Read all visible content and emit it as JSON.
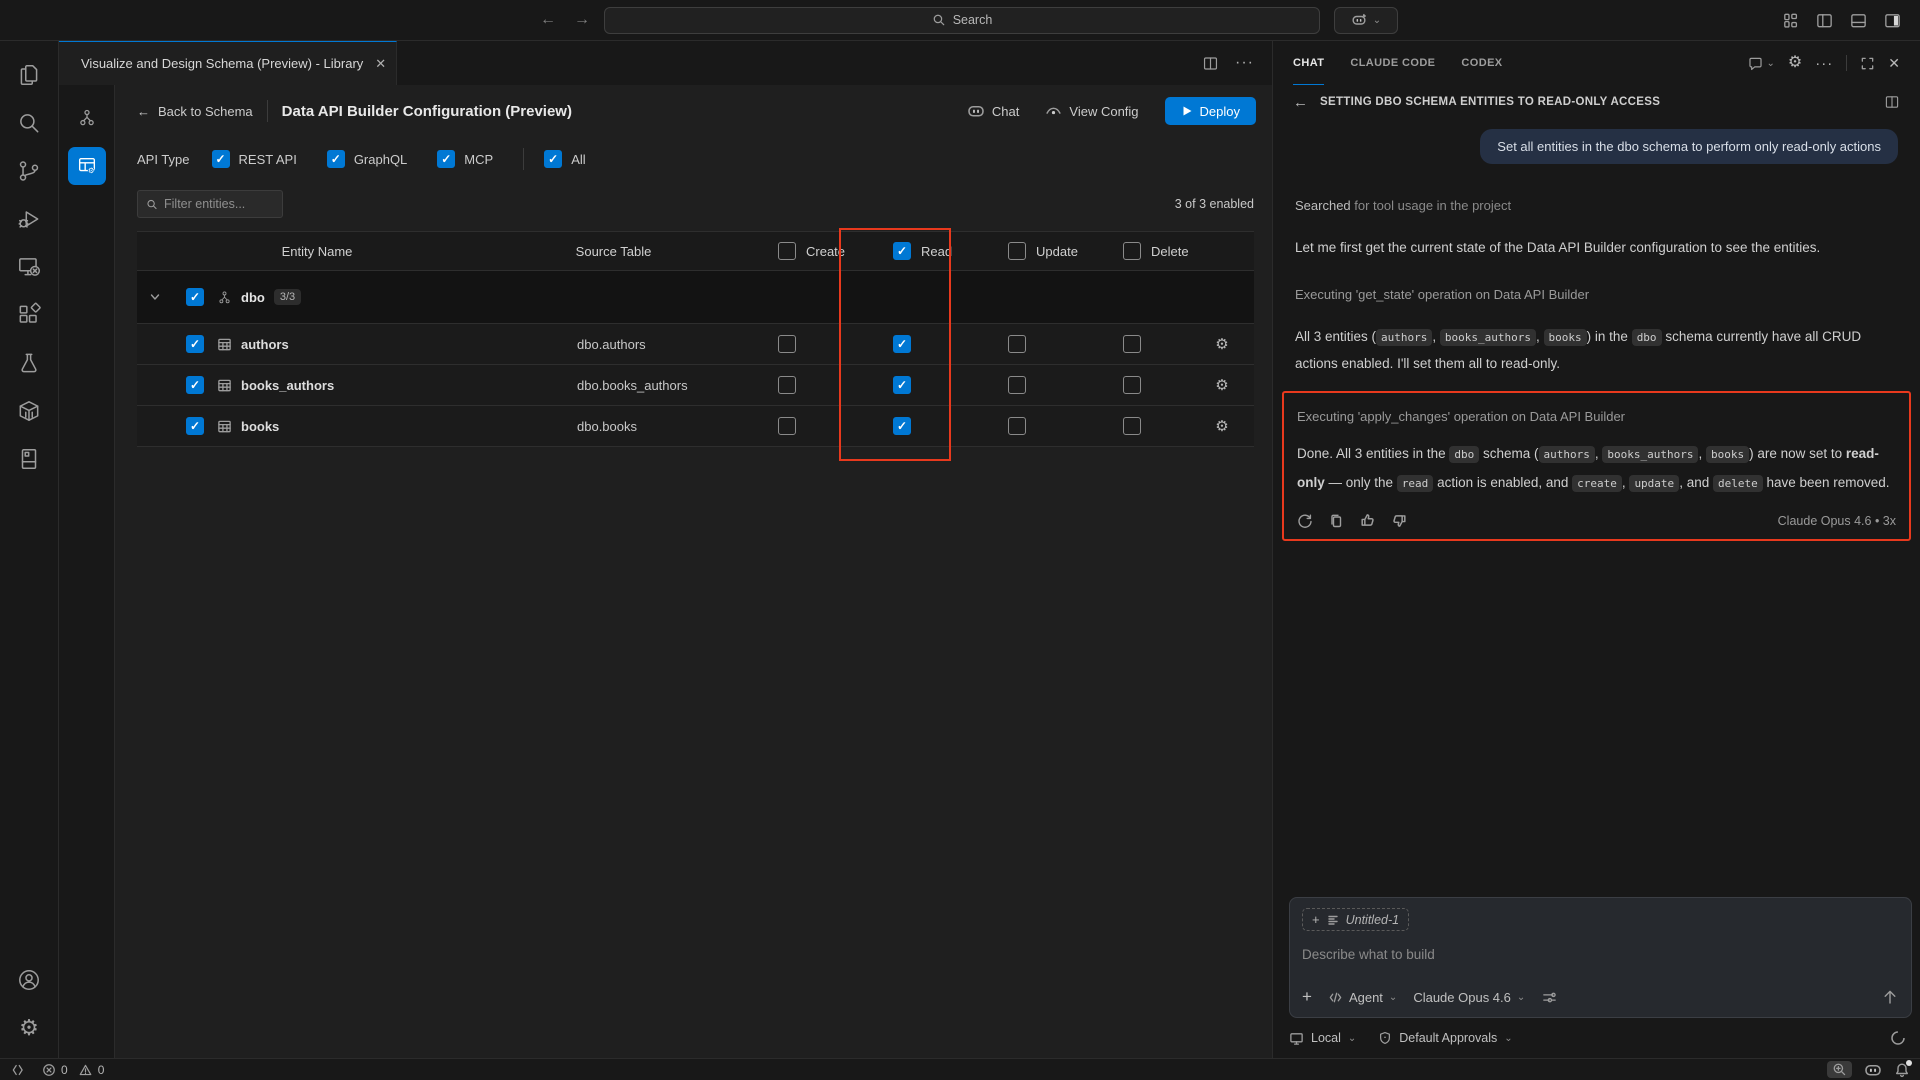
{
  "colors": {
    "accent": "#0078d4",
    "annotation_red": "#e8391d",
    "editor_bg": "#1f1f1f",
    "panel_bg": "#181818"
  },
  "glyphs": {
    "check": "✓",
    "gear": "⚙",
    "close": "✕",
    "ellipsis": "···",
    "chevron_down": "⌄",
    "chevron_expand": "⌄",
    "back_arrow": "←",
    "fwd_arrow": "→",
    "up_arrow": "↑",
    "chevron_row": "⌄",
    "plus": "+"
  },
  "title_bar": {
    "search_label": "Search"
  },
  "activity_bar": {
    "items": [
      "explorer",
      "search",
      "source-control",
      "run-debug",
      "remote-explorer",
      "extensions",
      "testing",
      "containers",
      "notebook"
    ],
    "bottom": [
      "account",
      "settings"
    ]
  },
  "editor": {
    "tab_title": "Visualize and Design Schema (Preview) - Library",
    "header": {
      "back_label": "Back to Schema",
      "title": "Data API Builder Configuration (Preview)",
      "chat_label": "Chat",
      "view_config_label": "View Config",
      "deploy_label": "Deploy"
    },
    "api_type": {
      "label": "API Type",
      "options": [
        {
          "label": "REST API",
          "checked": true
        },
        {
          "label": "GraphQL",
          "checked": true
        },
        {
          "label": "MCP",
          "checked": true
        },
        {
          "label": "All",
          "checked": true
        }
      ]
    },
    "filter": {
      "placeholder": "Filter entities...",
      "enabled_summary": "3 of 3 enabled"
    },
    "table": {
      "columns": {
        "entity": "Entity Name",
        "source": "Source Table",
        "create": "Create",
        "read": "Read",
        "update": "Update",
        "delete": "Delete"
      },
      "header_checks": {
        "create": false,
        "read": true,
        "update": false,
        "delete": false
      },
      "group": {
        "name": "dbo",
        "badge": "3/3",
        "checked": true
      },
      "rows": [
        {
          "name": "authors",
          "source": "dbo.authors",
          "selected": true,
          "create": false,
          "read": true,
          "update": false,
          "delete": false
        },
        {
          "name": "books_authors",
          "source": "dbo.books_authors",
          "selected": true,
          "create": false,
          "read": true,
          "update": false,
          "delete": false
        },
        {
          "name": "books",
          "source": "dbo.books",
          "selected": true,
          "create": false,
          "read": true,
          "update": false,
          "delete": false
        }
      ]
    }
  },
  "chat": {
    "tabs": [
      {
        "label": "CHAT",
        "active": true
      },
      {
        "label": "CLAUDE CODE",
        "active": false
      },
      {
        "label": "CODEX",
        "active": false
      }
    ],
    "session_title": "SETTING DBO SCHEMA ENTITIES TO READ-ONLY ACCESS",
    "user_message": "Set all entities in the dbo schema to perform only read-only actions",
    "searched_strong": "Searched",
    "searched_rest": " for tool usage in the project",
    "para1": "Let me first get the current state of the Data API Builder configuration to see the entities.",
    "op_get_state": "Executing 'get_state' operation on Data API Builder",
    "para2_segments": [
      {
        "t": "",
        "v": "All 3 entities ("
      },
      {
        "t": "c",
        "v": "authors"
      },
      {
        "t": "",
        "v": ", "
      },
      {
        "t": "c",
        "v": "books_authors"
      },
      {
        "t": "",
        "v": ", "
      },
      {
        "t": "c",
        "v": "books"
      },
      {
        "t": "",
        "v": ") in the "
      },
      {
        "t": "c",
        "v": "dbo"
      },
      {
        "t": "",
        "v": " schema currently have all CRUD actions enabled. I'll set them all to read-only."
      }
    ],
    "op_apply_changes": "Executing 'apply_changes' operation on Data API Builder",
    "done_segments": [
      {
        "t": "",
        "v": "Done. All 3 entities in the "
      },
      {
        "t": "c",
        "v": "dbo"
      },
      {
        "t": "",
        "v": " schema ("
      },
      {
        "t": "c",
        "v": "authors"
      },
      {
        "t": "",
        "v": ", "
      },
      {
        "t": "c",
        "v": "books_authors"
      },
      {
        "t": "",
        "v": ", "
      },
      {
        "t": "c",
        "v": "books"
      },
      {
        "t": "",
        "v": ") are now set to "
      },
      {
        "t": "b",
        "v": "read-only"
      },
      {
        "t": "",
        "v": " — only the "
      },
      {
        "t": "c",
        "v": "read"
      },
      {
        "t": "",
        "v": " action is enabled, and "
      },
      {
        "t": "c",
        "v": "create"
      },
      {
        "t": "",
        "v": ", "
      },
      {
        "t": "c",
        "v": "update"
      },
      {
        "t": "",
        "v": ", and "
      },
      {
        "t": "c",
        "v": "delete"
      },
      {
        "t": "",
        "v": " have been removed."
      }
    ],
    "message_meta": "Claude Opus 4.6 • 3x",
    "input": {
      "context_chip": "Untitled-1",
      "placeholder": "Describe what to build",
      "mode_label": "Agent",
      "model_label": "Claude Opus 4.6"
    },
    "env": {
      "location_label": "Local",
      "approvals_label": "Default Approvals"
    }
  },
  "status_bar": {
    "errors": "0",
    "warnings": "0"
  }
}
